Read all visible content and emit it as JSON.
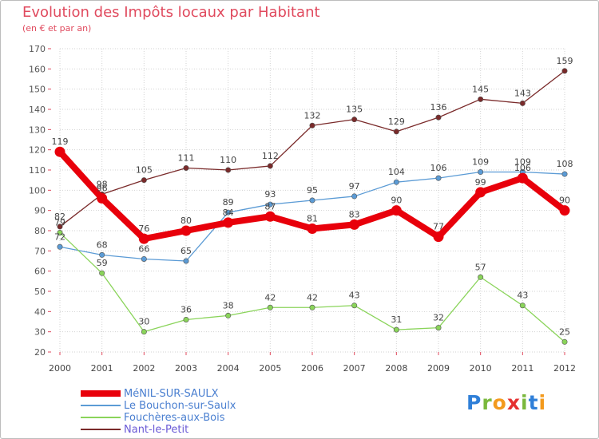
{
  "title": "Evolution des Impôts locaux par Habitant",
  "subtitle": "(en € et par an)",
  "brand": {
    "letters": [
      "P",
      "r",
      "o",
      "x",
      "i",
      "t",
      "i"
    ],
    "colors": [
      "#2f7fd8",
      "#7ab83c",
      "#f39a1d",
      "#e53030",
      "#7ab83c",
      "#2f7fd8",
      "#f39a1d"
    ]
  },
  "chart_data": {
    "type": "line",
    "title": "Evolution des Impôts locaux par Habitant",
    "subtitle": "(en € et par an)",
    "x": [
      "2000",
      "2001",
      "2002",
      "2003",
      "2004",
      "2005",
      "2006",
      "2007",
      "2008",
      "2009",
      "2010",
      "2011",
      "2012"
    ],
    "ylim": [
      20,
      170
    ],
    "yticks": [
      20,
      30,
      40,
      50,
      60,
      70,
      80,
      90,
      100,
      110,
      120,
      130,
      140,
      150,
      160,
      170
    ],
    "grid": true,
    "legend_position": "bottom-left",
    "series": [
      {
        "name": "MéNIL-SUR-SAULX",
        "color": "#e8000b",
        "values": [
          119,
          96,
          76,
          80,
          84,
          87,
          81,
          83,
          90,
          77,
          99,
          106,
          90
        ],
        "labels": [
          "119",
          "96",
          "76",
          "80",
          "84",
          "87",
          "81",
          "83",
          "90",
          "77",
          "99",
          "106",
          "90"
        ]
      },
      {
        "name": "Le Bouchon-sur-Saulx",
        "color": "#5b9bd5",
        "values": [
          72,
          68,
          66,
          65,
          89,
          93,
          95,
          97,
          104,
          106,
          109,
          109,
          108
        ],
        "labels": [
          "72",
          "68",
          "66",
          "65",
          "89",
          "93",
          "95",
          "97",
          "104",
          "106",
          "109",
          "109",
          "108"
        ]
      },
      {
        "name": "Fouchères-aux-Bois",
        "color": "#8ad45a",
        "values": [
          79,
          59,
          30,
          36,
          38,
          42,
          42,
          43,
          31,
          32,
          57,
          43,
          25
        ],
        "labels": [
          "79",
          "59",
          "30",
          "36",
          "38",
          "42",
          "42",
          "43",
          "31",
          "32",
          "57",
          "43",
          "25"
        ]
      },
      {
        "name": "Nant-le-Petit",
        "color": "#7a2a2a",
        "values": [
          82,
          98,
          105,
          111,
          110,
          112,
          132,
          135,
          129,
          136,
          145,
          143,
          159
        ],
        "labels": [
          "82",
          "98",
          "105",
          "111",
          "110",
          "112",
          "132",
          "135",
          "129",
          "136",
          "145",
          "143",
          "159"
        ]
      }
    ]
  }
}
